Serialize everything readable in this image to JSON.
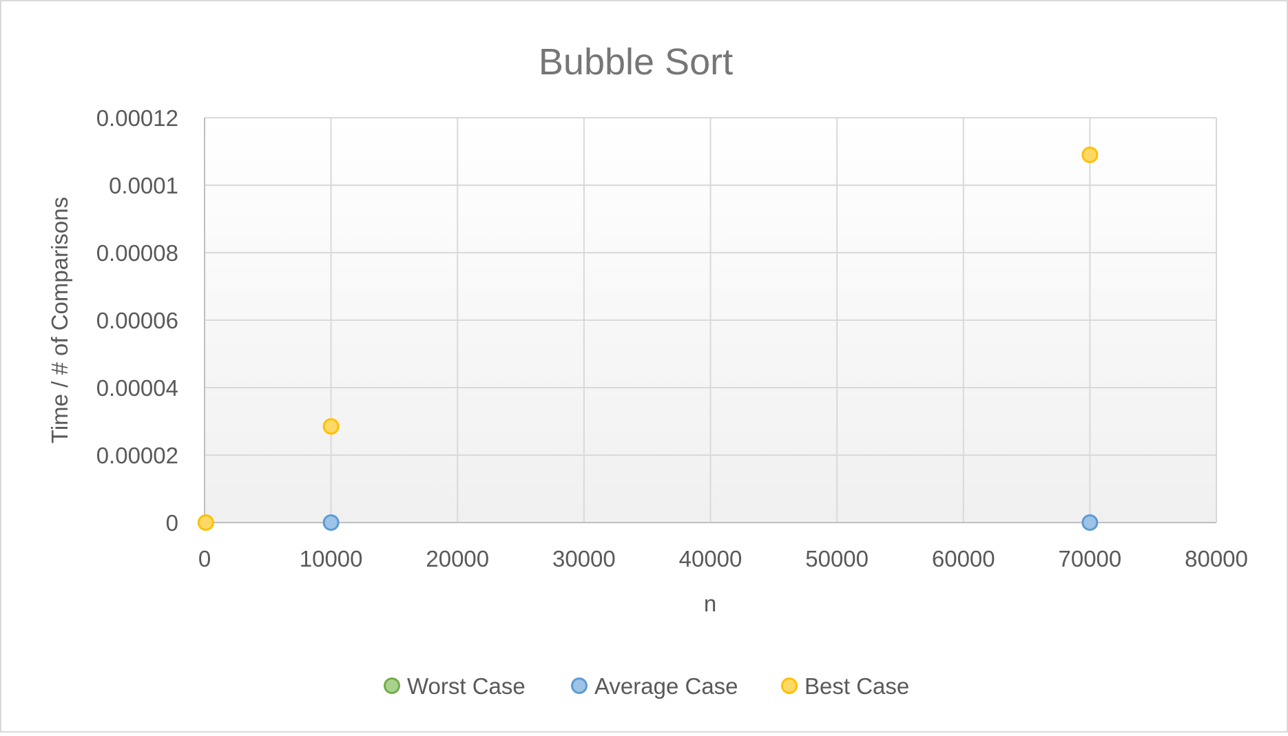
{
  "chart_data": {
    "type": "scatter",
    "title": "Bubble Sort",
    "xlabel": "n",
    "ylabel": "Time / # of Comparisons",
    "xlim": [
      0,
      80000
    ],
    "ylim": [
      0,
      0.00012
    ],
    "xticks": [
      "0",
      "10000",
      "20000",
      "30000",
      "40000",
      "50000",
      "60000",
      "70000",
      "80000"
    ],
    "yticks": [
      "0",
      "0.00002",
      "0.00004",
      "0.00006",
      "0.00008",
      "0.0001",
      "0.00012"
    ],
    "xtick_values": [
      0,
      10000,
      20000,
      30000,
      40000,
      50000,
      60000,
      70000,
      80000
    ],
    "ytick_values": [
      0,
      2e-05,
      4e-05,
      6e-05,
      8e-05,
      0.0001,
      0.00012
    ],
    "grid": true,
    "legend_position": "bottom",
    "series": [
      {
        "name": "Worst Case",
        "color": "#70ad47",
        "fill": "#a9d18e",
        "points": []
      },
      {
        "name": "Average Case",
        "color": "#5b9bd5",
        "fill": "#9dc3e6",
        "points": [
          {
            "x": 10000,
            "y": 0
          },
          {
            "x": 70000,
            "y": 0
          }
        ]
      },
      {
        "name": "Best Case",
        "color": "#ffc000",
        "fill": "#ffd966",
        "points": [
          {
            "x": 100,
            "y": 0
          },
          {
            "x": 10000,
            "y": 2.85e-05
          },
          {
            "x": 70000,
            "y": 0.000109
          }
        ]
      }
    ]
  }
}
